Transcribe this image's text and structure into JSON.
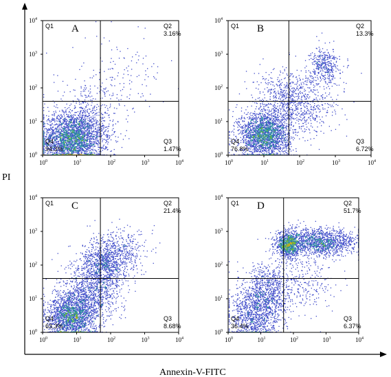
{
  "figure": {
    "y_axis_title": "PI",
    "x_axis_title": "Annexin-V-FITC",
    "arrow_color": "#000000"
  },
  "chart_data": [
    {
      "type": "scatter",
      "panel": "A",
      "x_scale": "log",
      "y_scale": "log",
      "xlim": [
        1,
        10000
      ],
      "ylim": [
        1,
        10000
      ],
      "x_ticks": [
        "10",
        "10",
        "10",
        "10",
        "10"
      ],
      "x_tick_exponents": [
        "0",
        "1",
        "2",
        "3",
        "4"
      ],
      "y_ticks": [
        "10",
        "10",
        "10",
        "10",
        "10"
      ],
      "y_tick_exponents": [
        "0",
        "1",
        "2",
        "3",
        "4"
      ],
      "gate": {
        "x": 50,
        "y": 40
      },
      "quadrants": [
        {
          "name": "Q1",
          "label": "Q1",
          "percent": ""
        },
        {
          "name": "Q2",
          "label": "Q2",
          "percent": "3.16%"
        },
        {
          "name": "Q3",
          "label": "Q3",
          "percent": "1.47%"
        },
        {
          "name": "Q4",
          "label": "Q4",
          "percent": "94.3%"
        }
      ],
      "populations": [
        {
          "cx": 7,
          "cy": 3,
          "sx": 0.45,
          "sy": 0.4,
          "n": 2600
        },
        {
          "cx": 20,
          "cy": 8,
          "sx": 0.5,
          "sy": 0.55,
          "n": 500
        },
        {
          "cx": 150,
          "cy": 200,
          "sx": 0.7,
          "sy": 0.6,
          "n": 150
        }
      ],
      "grid": false
    },
    {
      "type": "scatter",
      "panel": "B",
      "x_scale": "log",
      "y_scale": "log",
      "xlim": [
        1,
        10000
      ],
      "ylim": [
        1,
        10000
      ],
      "x_ticks": [
        "10",
        "10",
        "10",
        "10",
        "10"
      ],
      "x_tick_exponents": [
        "0",
        "1",
        "2",
        "3",
        "4"
      ],
      "y_ticks": [
        "10",
        "10",
        "10",
        "10",
        "10"
      ],
      "y_tick_exponents": [
        "0",
        "1",
        "2",
        "3",
        "4"
      ],
      "gate": {
        "x": 50,
        "y": 40
      },
      "quadrants": [
        {
          "name": "Q1",
          "label": "Q1",
          "percent": ""
        },
        {
          "name": "Q2",
          "label": "Q2",
          "percent": "13.3%"
        },
        {
          "name": "Q3",
          "label": "Q3",
          "percent": "6.72%"
        },
        {
          "name": "Q4",
          "label": "Q4",
          "percent": "76.8%"
        }
      ],
      "populations": [
        {
          "cx": 10,
          "cy": 4,
          "sx": 0.35,
          "sy": 0.35,
          "n": 2200
        },
        {
          "cx": 50,
          "cy": 40,
          "sx": 0.5,
          "sy": 0.5,
          "n": 700
        },
        {
          "cx": 500,
          "cy": 500,
          "sx": 0.2,
          "sy": 0.25,
          "n": 350
        },
        {
          "cx": 200,
          "cy": 30,
          "sx": 0.5,
          "sy": 0.5,
          "n": 250
        }
      ],
      "grid": false
    },
    {
      "type": "scatter",
      "panel": "C",
      "x_scale": "log",
      "y_scale": "log",
      "xlim": [
        1,
        10000
      ],
      "ylim": [
        1,
        10000
      ],
      "x_ticks": [
        "10",
        "10",
        "10",
        "10",
        "10"
      ],
      "x_tick_exponents": [
        "0",
        "1",
        "2",
        "3",
        "4"
      ],
      "y_ticks": [
        "10",
        "10",
        "10",
        "10",
        "10"
      ],
      "y_tick_exponents": [
        "0",
        "1",
        "2",
        "3",
        "4"
      ],
      "gate": {
        "x": 50,
        "y": 40
      },
      "quadrants": [
        {
          "name": "Q1",
          "label": "Q1",
          "percent": ""
        },
        {
          "name": "Q2",
          "label": "Q2",
          "percent": "21.4%"
        },
        {
          "name": "Q3",
          "label": "Q3",
          "percent": "8.68%"
        },
        {
          "name": "Q4",
          "label": "Q4",
          "percent": "63.3%"
        }
      ],
      "populations": [
        {
          "cx": 7,
          "cy": 3,
          "sx": 0.35,
          "sy": 0.35,
          "n": 1800
        },
        {
          "cx": 25,
          "cy": 15,
          "sx": 0.4,
          "sy": 0.5,
          "n": 900
        },
        {
          "cx": 70,
          "cy": 100,
          "sx": 0.35,
          "sy": 0.4,
          "n": 900
        },
        {
          "cx": 200,
          "cy": 300,
          "sx": 0.4,
          "sy": 0.3,
          "n": 300
        }
      ],
      "grid": false
    },
    {
      "type": "scatter",
      "panel": "D",
      "x_scale": "log",
      "y_scale": "log",
      "xlim": [
        1,
        10000
      ],
      "ylim": [
        1,
        10000
      ],
      "x_ticks": [
        "10",
        "10",
        "10",
        "10",
        "10"
      ],
      "x_tick_exponents": [
        "0",
        "1",
        "2",
        "3",
        "4"
      ],
      "y_ticks": [
        "10",
        "10",
        "10",
        "10",
        "10"
      ],
      "y_tick_exponents": [
        "0",
        "1",
        "2",
        "3",
        "4"
      ],
      "gate": {
        "x": 50,
        "y": 40
      },
      "quadrants": [
        {
          "name": "Q1",
          "label": "Q1",
          "percent": ""
        },
        {
          "name": "Q2",
          "label": "Q2",
          "percent": "51.7%"
        },
        {
          "name": "Q3",
          "label": "Q3",
          "percent": "6.37%"
        },
        {
          "name": "Q4",
          "label": "Q4",
          "percent": "36.4%"
        }
      ],
      "populations": [
        {
          "cx": 6,
          "cy": 3,
          "sx": 0.4,
          "sy": 0.4,
          "n": 900
        },
        {
          "cx": 15,
          "cy": 15,
          "sx": 0.35,
          "sy": 0.45,
          "n": 800
        },
        {
          "cx": 70,
          "cy": 400,
          "sx": 0.2,
          "sy": 0.2,
          "n": 900
        },
        {
          "cx": 700,
          "cy": 500,
          "sx": 0.55,
          "sy": 0.2,
          "n": 1300
        },
        {
          "cx": 200,
          "cy": 30,
          "sx": 0.5,
          "sy": 0.4,
          "n": 250
        }
      ],
      "grid": false
    }
  ]
}
